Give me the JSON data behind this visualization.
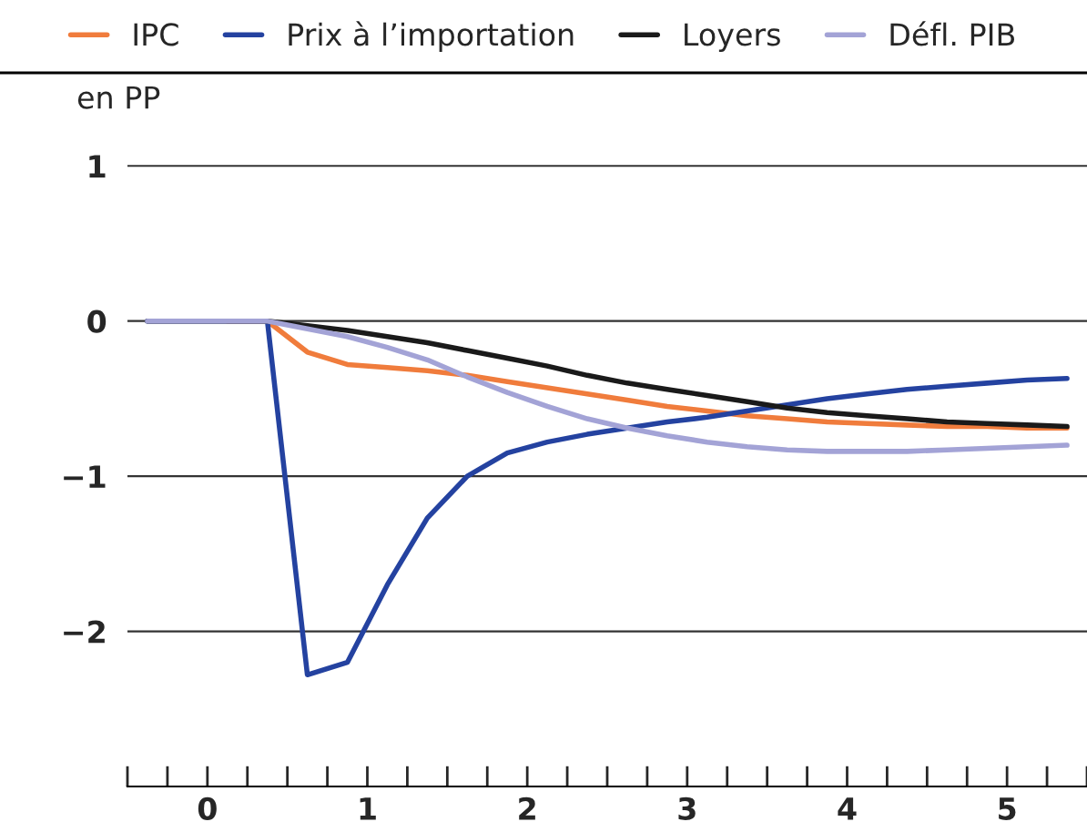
{
  "chart_data": {
    "type": "line",
    "ylabel": "en PP",
    "x": [
      -0.375,
      -0.125,
      0.125,
      0.375,
      0.625,
      0.875,
      1.125,
      1.375,
      1.625,
      1.875,
      2.125,
      2.375,
      2.625,
      2.875,
      3.125,
      3.375,
      3.625,
      3.875,
      4.125,
      4.375,
      4.625,
      4.875,
      5.125,
      5.375
    ],
    "series": [
      {
        "name": "IPC",
        "color": "#f07c3c",
        "values": [
          null,
          null,
          0,
          0,
          -0.2,
          -0.28,
          -0.3,
          -0.32,
          -0.35,
          -0.39,
          -0.43,
          -0.47,
          -0.51,
          -0.55,
          -0.58,
          -0.61,
          -0.63,
          -0.65,
          -0.66,
          -0.67,
          -0.68,
          -0.68,
          -0.69,
          -0.69
        ]
      },
      {
        "name": "Prix à l’importation",
        "color": "#2442a0",
        "values": [
          0,
          0,
          0,
          0,
          -2.28,
          -2.2,
          -1.7,
          -1.27,
          -1.0,
          -0.85,
          -0.78,
          -0.73,
          -0.69,
          -0.65,
          -0.62,
          -0.58,
          -0.54,
          -0.5,
          -0.47,
          -0.44,
          -0.42,
          -0.4,
          -0.38,
          -0.37
        ]
      },
      {
        "name": "Loyers",
        "color": "#1a1a1a",
        "values": [
          0,
          0,
          0,
          0,
          -0.03,
          -0.06,
          -0.1,
          -0.14,
          -0.19,
          -0.24,
          -0.29,
          -0.35,
          -0.4,
          -0.44,
          -0.48,
          -0.52,
          -0.56,
          -0.59,
          -0.61,
          -0.63,
          -0.65,
          -0.66,
          -0.67,
          -0.68
        ]
      },
      {
        "name": "Défl. PIB",
        "color": "#a3a3d6",
        "values": [
          0,
          0,
          0,
          0,
          -0.05,
          -0.1,
          -0.17,
          -0.25,
          -0.36,
          -0.46,
          -0.55,
          -0.63,
          -0.69,
          -0.74,
          -0.78,
          -0.81,
          -0.83,
          -0.84,
          -0.84,
          -0.84,
          -0.83,
          -0.82,
          -0.81,
          -0.8
        ]
      }
    ],
    "xlim": [
      -0.5,
      5.5
    ],
    "xticks": [
      {
        "value": -0.5,
        "label": null
      },
      {
        "value": -0.25,
        "label": null
      },
      0,
      {
        "value": 0.25,
        "label": null
      },
      {
        "value": 0.5,
        "label": null
      },
      {
        "value": 0.75,
        "label": null
      },
      1,
      {
        "value": 1.25,
        "label": null
      },
      {
        "value": 1.5,
        "label": null
      },
      {
        "value": 1.75,
        "label": null
      },
      2,
      {
        "value": 2.25,
        "label": null
      },
      {
        "value": 2.5,
        "label": null
      },
      {
        "value": 2.75,
        "label": null
      },
      3,
      {
        "value": 3.25,
        "label": null
      },
      {
        "value": 3.5,
        "label": null
      },
      {
        "value": 3.75,
        "label": null
      },
      4,
      {
        "value": 4.25,
        "label": null
      },
      {
        "value": 4.5,
        "label": null
      },
      {
        "value": 4.75,
        "label": null
      },
      5,
      {
        "value": 5.25,
        "label": null
      },
      {
        "value": 5.5,
        "label": null
      }
    ],
    "ylim": [
      -3,
      1.6
    ],
    "yticks": [
      {
        "value": -2,
        "label": "−2"
      },
      {
        "value": -1,
        "label": "−1"
      },
      0,
      1
    ],
    "grid": "y",
    "legend": "top",
    "marker": "none",
    "line_style": "solid"
  }
}
